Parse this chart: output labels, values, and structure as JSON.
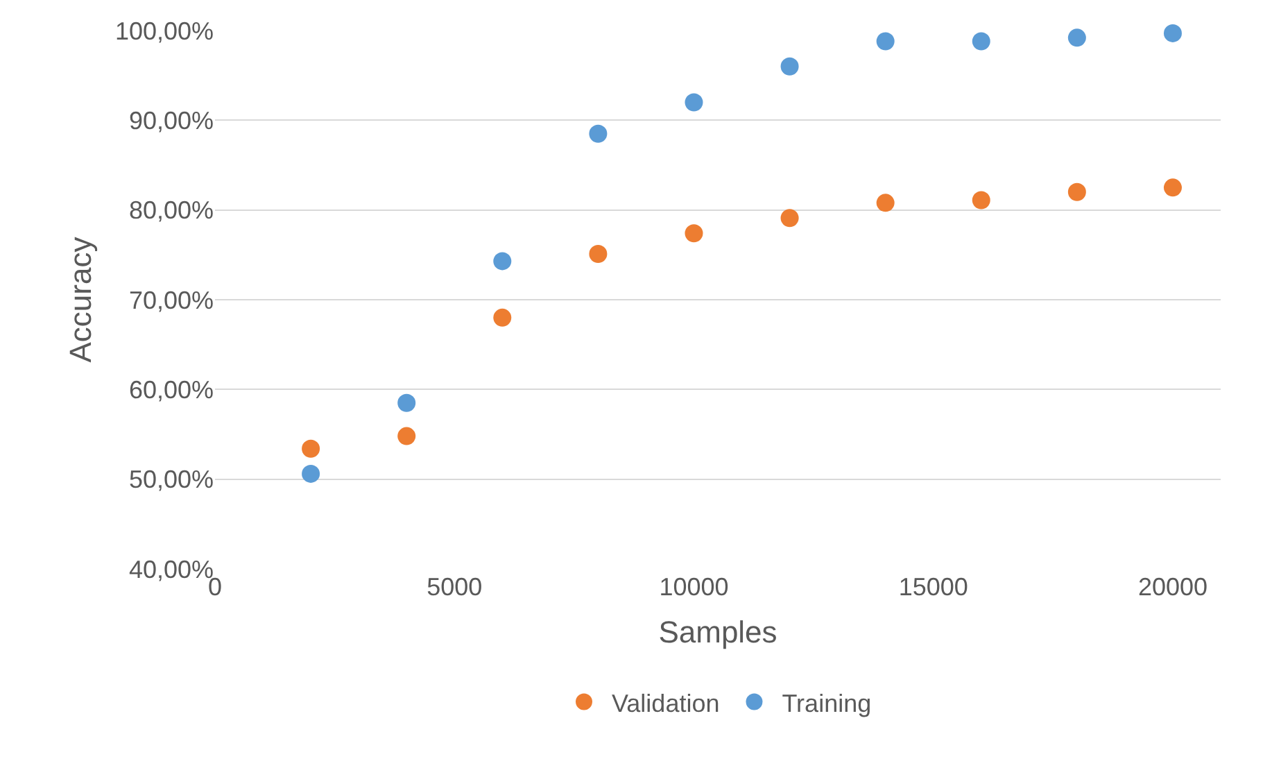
{
  "chart_data": {
    "type": "scatter",
    "xlabel": "Samples",
    "ylabel": "Accuracy",
    "x": [
      2000,
      4000,
      6000,
      8000,
      10000,
      12000,
      14000,
      16000,
      18000,
      20000
    ],
    "series": [
      {
        "name": "Validation",
        "color": "#ed7d31",
        "values": [
          53.4,
          54.8,
          68.0,
          75.1,
          77.4,
          79.1,
          80.8,
          81.1,
          82.0,
          82.5
        ]
      },
      {
        "name": "Training",
        "color": "#5b9bd5",
        "values": [
          50.6,
          58.5,
          74.3,
          88.5,
          92.0,
          96.0,
          98.8,
          98.8,
          99.2,
          99.7
        ]
      }
    ],
    "xlim": [
      0,
      21000
    ],
    "xticks": [
      0,
      5000,
      10000,
      15000,
      20000
    ],
    "ylim": [
      40,
      100
    ],
    "yticks": [
      {
        "value": 40,
        "label": "40,00%"
      },
      {
        "value": 50,
        "label": "50,00%"
      },
      {
        "value": 60,
        "label": "60,00%"
      },
      {
        "value": 70,
        "label": "70,00%"
      },
      {
        "value": 80,
        "label": "80,00%"
      },
      {
        "value": 90,
        "label": "90,00%"
      },
      {
        "value": 100,
        "label": "100,00%"
      }
    ],
    "grid": "y",
    "legend": "bottom",
    "marker": "circle"
  }
}
